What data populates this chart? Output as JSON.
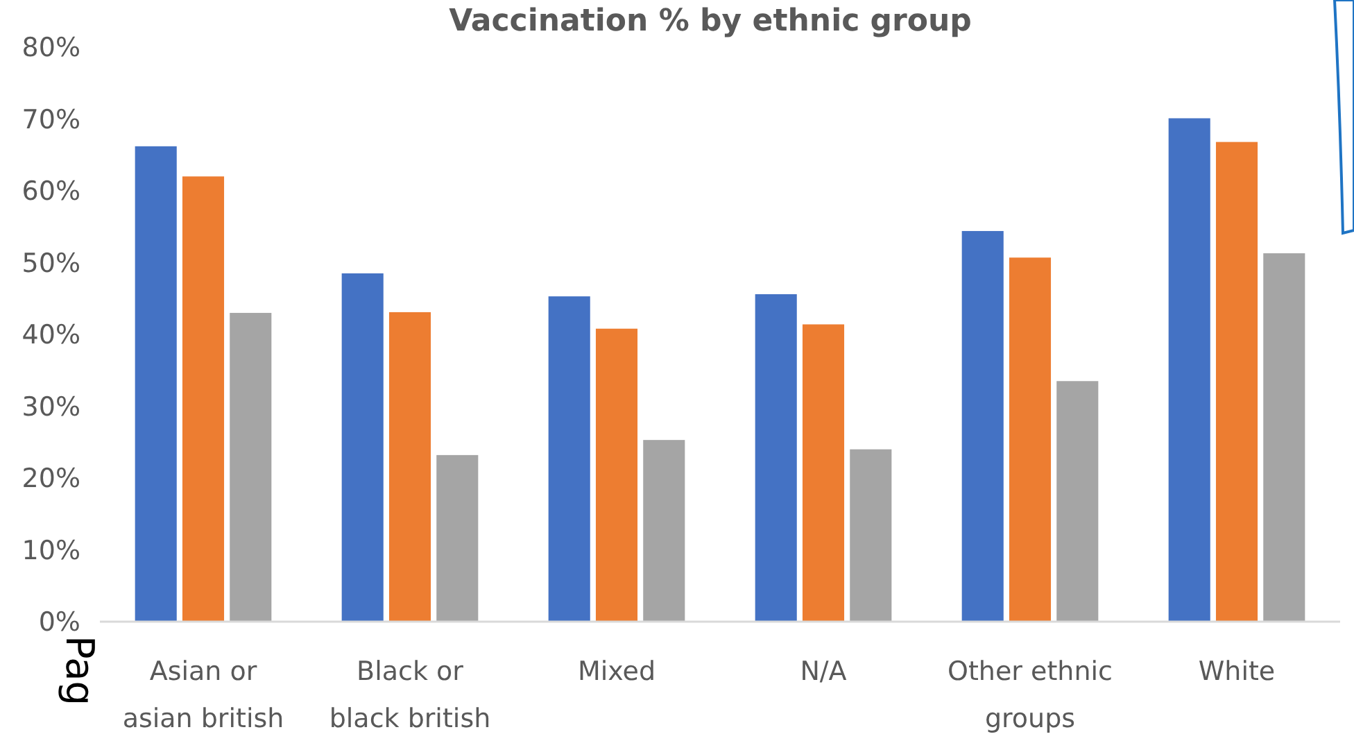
{
  "chart_data": {
    "type": "bar",
    "title": "Vaccination % by ethnic group",
    "categories": [
      "Asian or asian british",
      "Black or black british",
      "Mixed",
      "N/A",
      "Other ethnic groups",
      "White"
    ],
    "series": [
      {
        "color": "#4472c4",
        "values": [
          66.2,
          48.5,
          45.3,
          45.6,
          54.4,
          70.1
        ]
      },
      {
        "color": "#ed7d31",
        "values": [
          62.0,
          43.1,
          40.8,
          41.4,
          50.7,
          66.8
        ]
      },
      {
        "color": "#a5a5a5",
        "values": [
          43.0,
          23.2,
          25.3,
          24.0,
          33.5,
          51.3
        ]
      }
    ],
    "ylim": [
      0,
      80
    ],
    "yticks": [
      {
        "value": 0,
        "label": "0%"
      },
      {
        "value": 10,
        "label": "10%"
      },
      {
        "value": 20,
        "label": "20%"
      },
      {
        "value": 30,
        "label": "30%"
      },
      {
        "value": 40,
        "label": "40%"
      },
      {
        "value": 50,
        "label": "50%"
      },
      {
        "value": 60,
        "label": "60%"
      },
      {
        "value": 70,
        "label": "70%"
      },
      {
        "value": 80,
        "label": "80%"
      }
    ],
    "grid": false,
    "annotations": [
      "Pag"
    ]
  }
}
